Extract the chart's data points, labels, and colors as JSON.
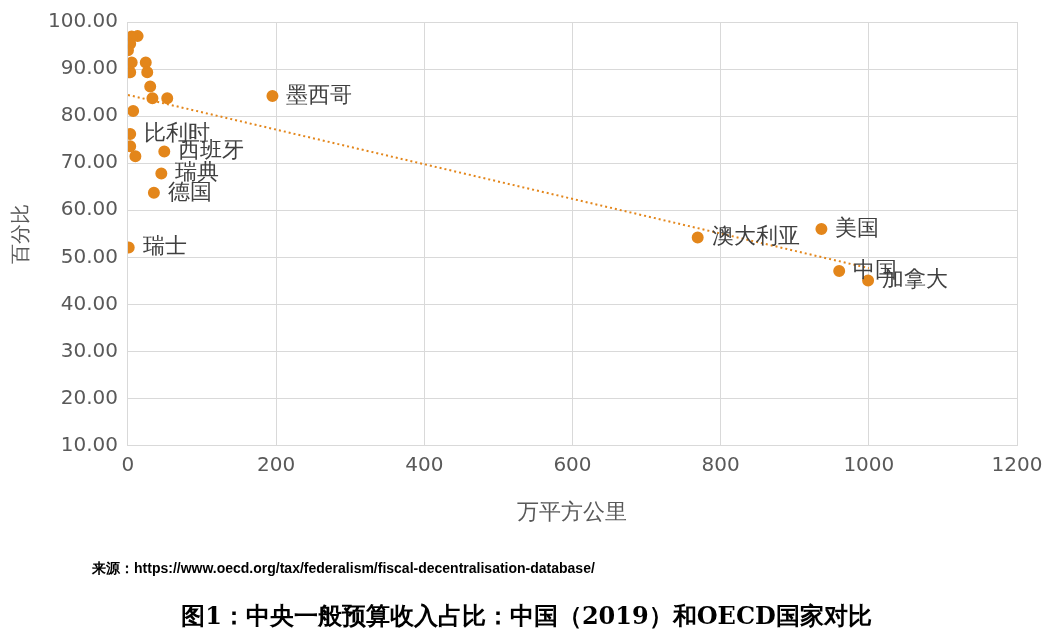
{
  "chart_data": {
    "type": "scatter",
    "title": "图1：中央一般预算收入占比：中国（2019）和OECD国家对比",
    "xlabel": "万平方公里",
    "ylabel": "百分比",
    "x": [
      13,
      5,
      3,
      0,
      5,
      24,
      3,
      26,
      30,
      33,
      53,
      195,
      7,
      3,
      3,
      10,
      49,
      45,
      35,
      1,
      769,
      936,
      960,
      999
    ],
    "series": [
      {
        "color": "#e3861b",
        "marker": "circle",
        "values": [
          97.0,
          96.9,
          95.4,
          94.0,
          91.4,
          91.4,
          89.3,
          89.3,
          86.3,
          83.8,
          83.8,
          84.3,
          81.1,
          76.2,
          73.6,
          71.5,
          72.5,
          67.8,
          63.7,
          52.1,
          54.2,
          56.0,
          47.1,
          45.1
        ]
      },
      {
        "type": "line",
        "x": [
          0,
          1000
        ],
        "color": "#e3861b",
        "marker": "none",
        "line_style": "dotted",
        "values": [
          84.5,
          47.7
        ]
      }
    ],
    "xlim": [
      0,
      1200
    ],
    "xticks": [
      0,
      200,
      400,
      600,
      800,
      1000,
      1200
    ],
    "ylim": [
      10,
      100
    ],
    "yticks": [
      {
        "value": 10,
        "label": "10.00"
      },
      {
        "value": 20,
        "label": "20.00"
      },
      {
        "value": 30,
        "label": "30.00"
      },
      {
        "value": 40,
        "label": "40.00"
      },
      {
        "value": 50,
        "label": "50.00"
      },
      {
        "value": 60,
        "label": "60.00"
      },
      {
        "value": 70,
        "label": "70.00"
      },
      {
        "value": 80,
        "label": "80.00"
      },
      {
        "value": 90,
        "label": "90.00"
      },
      {
        "value": 100,
        "label": "100.00"
      }
    ],
    "grid": true,
    "legend": false,
    "annotations": [
      {
        "text": "墨西哥",
        "x": 195,
        "y": 84.3
      },
      {
        "text": "比利时",
        "x": 3,
        "y": 76.2
      },
      {
        "text": "西班牙",
        "x": 49,
        "y": 72.5
      },
      {
        "text": "瑞典",
        "x": 45,
        "y": 67.8
      },
      {
        "text": "德国",
        "x": 35,
        "y": 63.7
      },
      {
        "text": "瑞士",
        "x": 1,
        "y": 52.1
      },
      {
        "text": "澳大利亚",
        "x": 769,
        "y": 54.2
      },
      {
        "text": "美国",
        "x": 936,
        "y": 56.0
      },
      {
        "text": "中国",
        "x": 960,
        "y": 47.1
      },
      {
        "text": "加拿大",
        "x": 999,
        "y": 45.1
      },
      "来源：https://www.oecd.org/tax/federalism/fiscal-decentralisation-database/"
    ]
  }
}
